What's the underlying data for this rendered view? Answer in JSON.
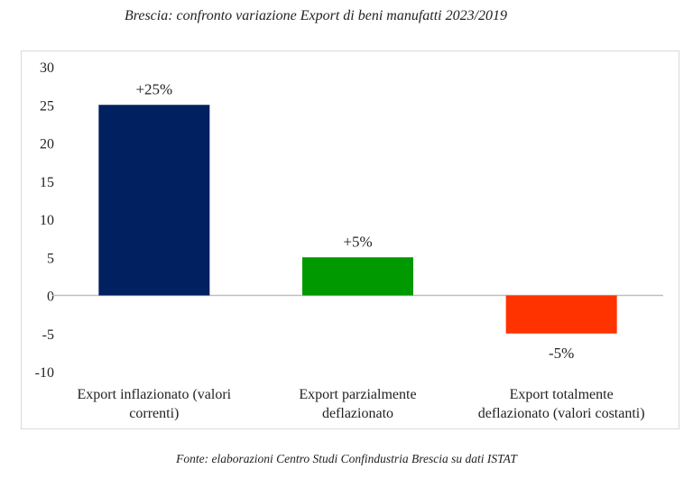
{
  "chart_data": {
    "type": "bar",
    "title": "Brescia: confronto variazione Export di beni manufatti 2023/2019",
    "categories": [
      [
        "Export inflazionato (valori",
        "correnti)"
      ],
      [
        "Export parzialmente",
        "deflazionato"
      ],
      [
        "Export totalmente",
        "deflazionato (valori costanti)"
      ]
    ],
    "values": [
      25,
      5,
      -5
    ],
    "data_labels": [
      "+25%",
      "+5%",
      "-5%"
    ],
    "colors": [
      "#002060",
      "#009900",
      "#ff3300"
    ],
    "ylim": [
      -10,
      30
    ],
    "yticks": [
      "30",
      "25",
      "20",
      "15",
      "10",
      "5",
      "0",
      "-5",
      "-10"
    ],
    "grid": false,
    "xlabel": "",
    "ylabel": ""
  },
  "footer": "Fonte: elaborazioni Centro Studi Confindustria Brescia su dati ISTAT"
}
